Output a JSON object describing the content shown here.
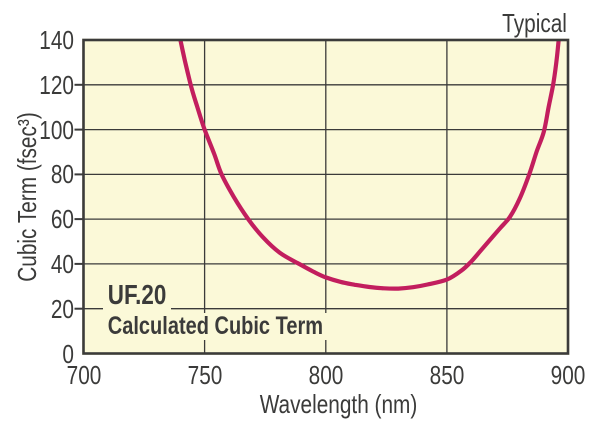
{
  "figure": {
    "corner_label": "Typical"
  },
  "chart_data": {
    "type": "line",
    "title": "Typical",
    "xlabel": "Wavelength (nm)",
    "ylabel": "Cubic Term (fsec³)",
    "xlim": [
      700,
      900
    ],
    "ylim": [
      0,
      140
    ],
    "x_ticks": [
      700,
      750,
      800,
      850,
      900
    ],
    "y_ticks": [
      0,
      20,
      40,
      60,
      80,
      100,
      120,
      140
    ],
    "grid": true,
    "legend": false,
    "annotations": {
      "product": "UF.20",
      "caption": "Calculated Cubic Term"
    },
    "series": [
      {
        "name": "Calculated cubic term",
        "color": "#C21E5E",
        "points": [
          [
            737,
            158
          ],
          [
            740,
            140
          ],
          [
            744,
            121
          ],
          [
            747,
            110
          ],
          [
            750,
            100
          ],
          [
            754,
            89
          ],
          [
            757,
            80
          ],
          [
            762,
            70
          ],
          [
            768,
            60
          ],
          [
            774,
            52
          ],
          [
            781,
            45
          ],
          [
            789,
            40
          ],
          [
            795,
            36.5
          ],
          [
            800,
            34
          ],
          [
            806,
            32
          ],
          [
            812,
            30.7
          ],
          [
            818,
            29.7
          ],
          [
            824,
            29.1
          ],
          [
            830,
            29
          ],
          [
            836,
            29.6
          ],
          [
            842,
            30.8
          ],
          [
            850,
            33
          ],
          [
            856,
            37
          ],
          [
            860,
            41
          ],
          [
            864,
            46
          ],
          [
            868,
            51
          ],
          [
            872,
            56
          ],
          [
            876,
            61
          ],
          [
            880,
            69
          ],
          [
            884,
            80
          ],
          [
            887,
            90
          ],
          [
            890,
            99
          ],
          [
            892,
            110
          ],
          [
            894,
            121
          ],
          [
            895.5,
            133
          ],
          [
            897,
            150
          ]
        ]
      }
    ],
    "colors": {
      "background": "#FFFFFF",
      "plot_bg": "#FBF9D8",
      "axis": "#3B3B3A",
      "curve": "#C21E5E"
    }
  }
}
